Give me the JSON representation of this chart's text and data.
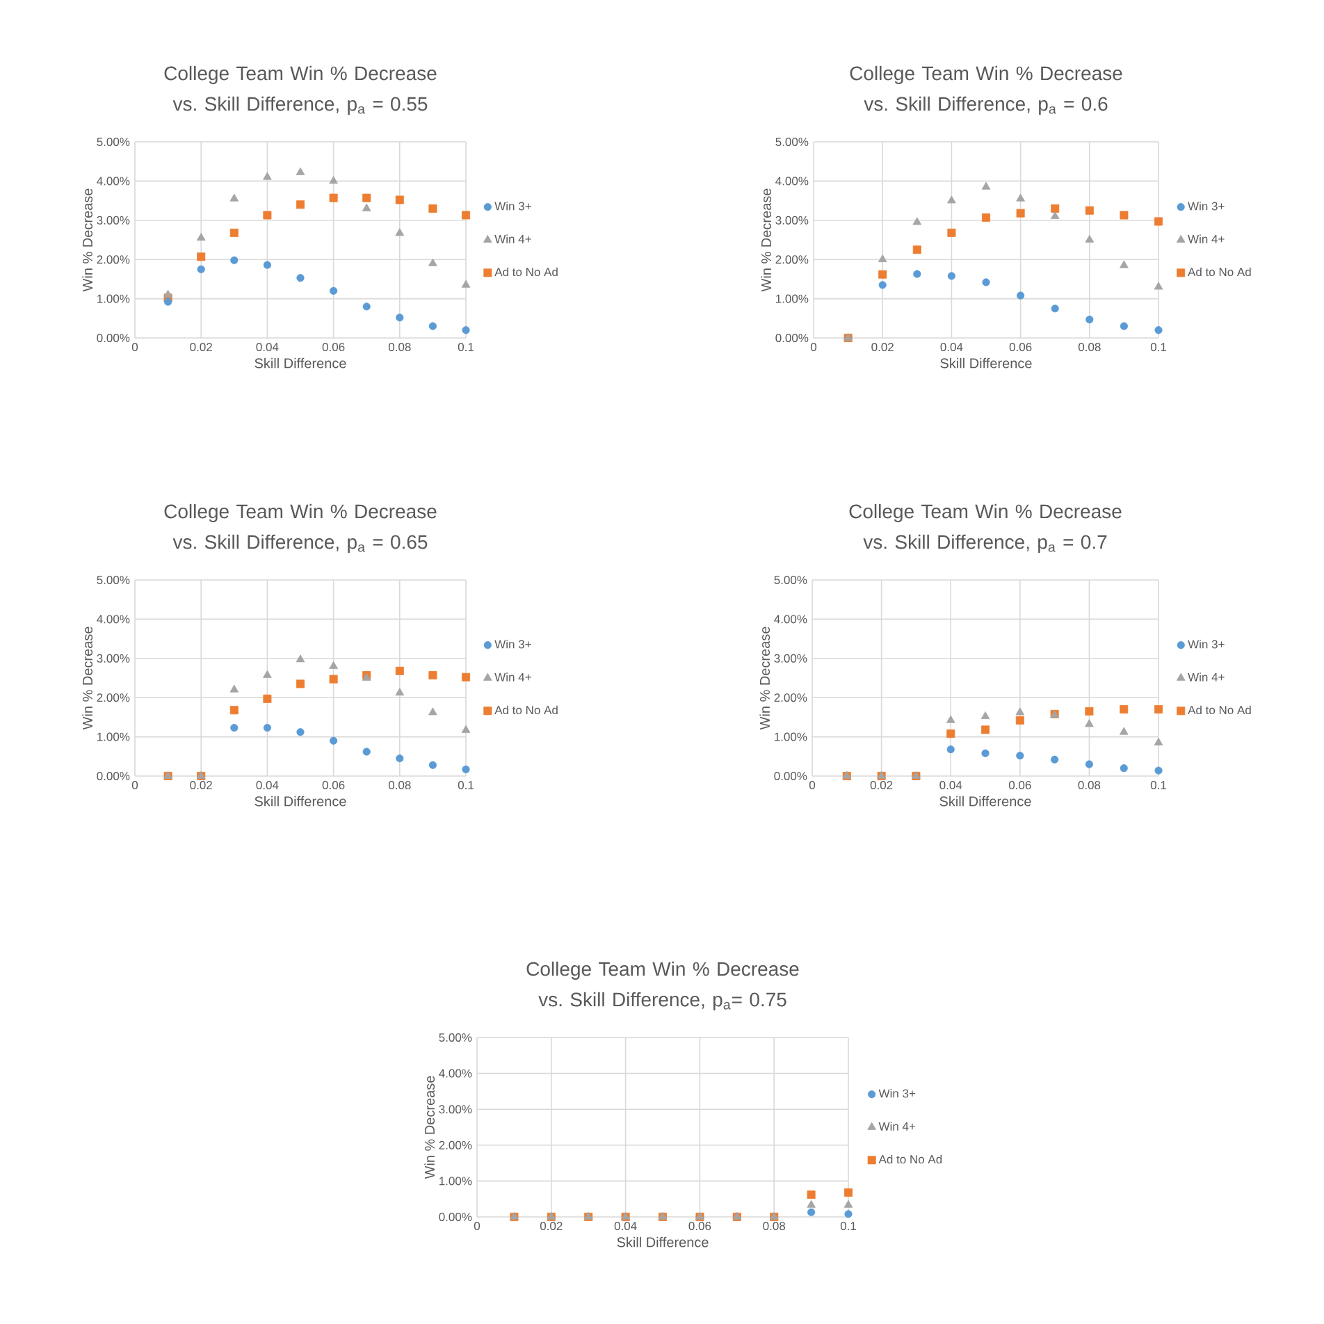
{
  "chart_data": [
    {
      "type": "scatter",
      "title": "College Team Win % Decrease vs. Skill Difference, p$_{a}$ = 0.55",
      "xlabel": "Skill Difference",
      "ylabel": "Win % Decrease",
      "xlim": [
        0,
        0.1
      ],
      "xticks": [
        0,
        0.02,
        0.04,
        0.06,
        0.08,
        0.1
      ],
      "ylim": [
        0,
        5
      ],
      "yticks": [
        {
          "value": 0,
          "label": "0.00%"
        },
        {
          "value": 1,
          "label": "1.00%"
        },
        {
          "value": 2,
          "label": "2.00%"
        },
        {
          "value": 3,
          "label": "3.00%"
        },
        {
          "value": 4,
          "label": "4.00%"
        },
        {
          "value": 5,
          "label": "5.00%"
        }
      ],
      "grid": true,
      "legend": "right",
      "x": [
        0.01,
        0.02,
        0.03,
        0.04,
        0.05,
        0.06,
        0.07,
        0.08,
        0.09,
        0.1
      ],
      "series": [
        {
          "name": "Win 3+",
          "color": "#5b9bd5",
          "marker": "circle",
          "values": [
            0.92,
            1.75,
            1.98,
            1.86,
            1.53,
            1.2,
            0.8,
            0.52,
            0.3,
            0.2
          ]
        },
        {
          "name": "Win 4+",
          "color": "#a5a5a5",
          "marker": "triangle",
          "values": [
            1.1,
            2.55,
            3.55,
            4.1,
            4.22,
            4.0,
            3.3,
            2.67,
            1.9,
            1.35
          ]
        },
        {
          "name": "Ad to No Ad",
          "color": "#ed7d31",
          "marker": "square",
          "values": [
            1.02,
            2.07,
            2.68,
            3.13,
            3.4,
            3.57,
            3.57,
            3.52,
            3.3,
            3.13
          ]
        }
      ]
    },
    {
      "type": "scatter",
      "title": "College Team Win % Decrease vs. Skill Difference, p$_{a}$ = 0.6",
      "xlabel": "Skill Difference",
      "ylabel": "Win % Decrease",
      "xlim": [
        0,
        0.1
      ],
      "xticks": [
        0,
        0.02,
        0.04,
        0.06,
        0.08,
        0.1
      ],
      "ylim": [
        0,
        5
      ],
      "yticks": [
        {
          "value": 0,
          "label": "0.00%"
        },
        {
          "value": 1,
          "label": "1.00%"
        },
        {
          "value": 2,
          "label": "2.00%"
        },
        {
          "value": 3,
          "label": "3.00%"
        },
        {
          "value": 4,
          "label": "4.00%"
        },
        {
          "value": 5,
          "label": "5.00%"
        }
      ],
      "grid": true,
      "legend": "right",
      "x": [
        0.01,
        0.02,
        0.03,
        0.04,
        0.05,
        0.06,
        0.07,
        0.08,
        0.09,
        0.1
      ],
      "series": [
        {
          "name": "Win 3+",
          "color": "#5b9bd5",
          "marker": "circle",
          "values": [
            null,
            1.35,
            1.63,
            1.58,
            1.42,
            1.08,
            0.75,
            0.47,
            0.3,
            0.2
          ]
        },
        {
          "name": "Win 4+",
          "color": "#a5a5a5",
          "marker": "triangle",
          "values": [
            0,
            2.0,
            2.95,
            3.5,
            3.85,
            3.55,
            3.1,
            2.5,
            1.85,
            1.3
          ]
        },
        {
          "name": "Ad to No Ad",
          "color": "#ed7d31",
          "marker": "square",
          "values": [
            0,
            1.62,
            2.25,
            2.68,
            3.07,
            3.18,
            3.3,
            3.25,
            3.13,
            2.97
          ]
        }
      ]
    },
    {
      "type": "scatter",
      "title": "College Team Win % Decrease vs. Skill Difference, p$_{a}$ = 0.65",
      "xlabel": "Skill Difference",
      "ylabel": "Win % Decrease",
      "xlim": [
        0,
        0.1
      ],
      "xticks": [
        0,
        0.02,
        0.04,
        0.06,
        0.08,
        0.1
      ],
      "ylim": [
        0,
        5
      ],
      "yticks": [
        {
          "value": 0,
          "label": "0.00%"
        },
        {
          "value": 1,
          "label": "1.00%"
        },
        {
          "value": 2,
          "label": "2.00%"
        },
        {
          "value": 3,
          "label": "3.00%"
        },
        {
          "value": 4,
          "label": "4.00%"
        },
        {
          "value": 5,
          "label": "5.00%"
        }
      ],
      "grid": true,
      "legend": "right",
      "x": [
        0.01,
        0.02,
        0.03,
        0.04,
        0.05,
        0.06,
        0.07,
        0.08,
        0.09,
        0.1
      ],
      "series": [
        {
          "name": "Win 3+",
          "color": "#5b9bd5",
          "marker": "circle",
          "values": [
            null,
            null,
            1.23,
            1.23,
            1.12,
            0.9,
            0.62,
            0.45,
            0.28,
            0.17
          ]
        },
        {
          "name": "Win 4+",
          "color": "#a5a5a5",
          "marker": "triangle",
          "values": [
            0,
            0,
            2.2,
            2.57,
            2.97,
            2.8,
            2.5,
            2.12,
            1.62,
            1.17
          ]
        },
        {
          "name": "Ad to No Ad",
          "color": "#ed7d31",
          "marker": "square",
          "values": [
            0,
            0,
            1.68,
            1.97,
            2.35,
            2.47,
            2.57,
            2.68,
            2.57,
            2.52
          ]
        }
      ]
    },
    {
      "type": "scatter",
      "title": "College Team Win % Decrease vs. Skill Difference, p$_{a}$ = 0.7",
      "xlabel": "Skill Difference",
      "ylabel": "Win % Decrease",
      "xlim": [
        0,
        0.1
      ],
      "xticks": [
        0,
        0.02,
        0.04,
        0.06,
        0.08,
        0.1
      ],
      "ylim": [
        0,
        5
      ],
      "yticks": [
        {
          "value": 0,
          "label": "0.00%"
        },
        {
          "value": 1,
          "label": "1.00%"
        },
        {
          "value": 2,
          "label": "2.00%"
        },
        {
          "value": 3,
          "label": "3.00%"
        },
        {
          "value": 4,
          "label": "4.00%"
        },
        {
          "value": 5,
          "label": "5.00%"
        }
      ],
      "grid": true,
      "legend": "right",
      "x": [
        0.01,
        0.02,
        0.03,
        0.04,
        0.05,
        0.06,
        0.07,
        0.08,
        0.09,
        0.1
      ],
      "series": [
        {
          "name": "Win 3+",
          "color": "#5b9bd5",
          "marker": "circle",
          "values": [
            null,
            null,
            null,
            0.68,
            0.58,
            0.52,
            0.42,
            0.3,
            0.2,
            0.14
          ]
        },
        {
          "name": "Win 4+",
          "color": "#a5a5a5",
          "marker": "triangle",
          "values": [
            0,
            0,
            0,
            1.42,
            1.52,
            1.62,
            1.55,
            1.32,
            1.12,
            0.85
          ]
        },
        {
          "name": "Ad to No Ad",
          "color": "#ed7d31",
          "marker": "square",
          "values": [
            0,
            0,
            0,
            1.08,
            1.18,
            1.42,
            1.58,
            1.65,
            1.7,
            1.7
          ]
        }
      ]
    },
    {
      "type": "scatter",
      "title": "College Team Win % Decrease vs. Skill Difference, p$_{a}$= 0.75",
      "xlabel": "Skill Difference",
      "ylabel": "Win % Decrease",
      "xlim": [
        0,
        0.1
      ],
      "xticks": [
        0,
        0.02,
        0.04,
        0.06,
        0.08,
        0.1
      ],
      "ylim": [
        0,
        5
      ],
      "yticks": [
        {
          "value": 0,
          "label": "0.00%"
        },
        {
          "value": 1,
          "label": "1.00%"
        },
        {
          "value": 2,
          "label": "2.00%"
        },
        {
          "value": 3,
          "label": "3.00%"
        },
        {
          "value": 4,
          "label": "4.00%"
        },
        {
          "value": 5,
          "label": "5.00%"
        }
      ],
      "grid": true,
      "legend": "right",
      "x": [
        0.01,
        0.02,
        0.03,
        0.04,
        0.05,
        0.06,
        0.07,
        0.08,
        0.09,
        0.1
      ],
      "series": [
        {
          "name": "Win 3+",
          "color": "#5b9bd5",
          "marker": "circle",
          "values": [
            null,
            null,
            null,
            null,
            null,
            null,
            null,
            null,
            0.13,
            0.08
          ]
        },
        {
          "name": "Win 4+",
          "color": "#a5a5a5",
          "marker": "triangle",
          "values": [
            0,
            0,
            0,
            0,
            0,
            0,
            0,
            0,
            0.33,
            0.33
          ]
        },
        {
          "name": "Ad to No Ad",
          "color": "#ed7d31",
          "marker": "square",
          "values": [
            0,
            0,
            0,
            0,
            0,
            0,
            0,
            0,
            0.62,
            0.68
          ]
        }
      ]
    }
  ]
}
